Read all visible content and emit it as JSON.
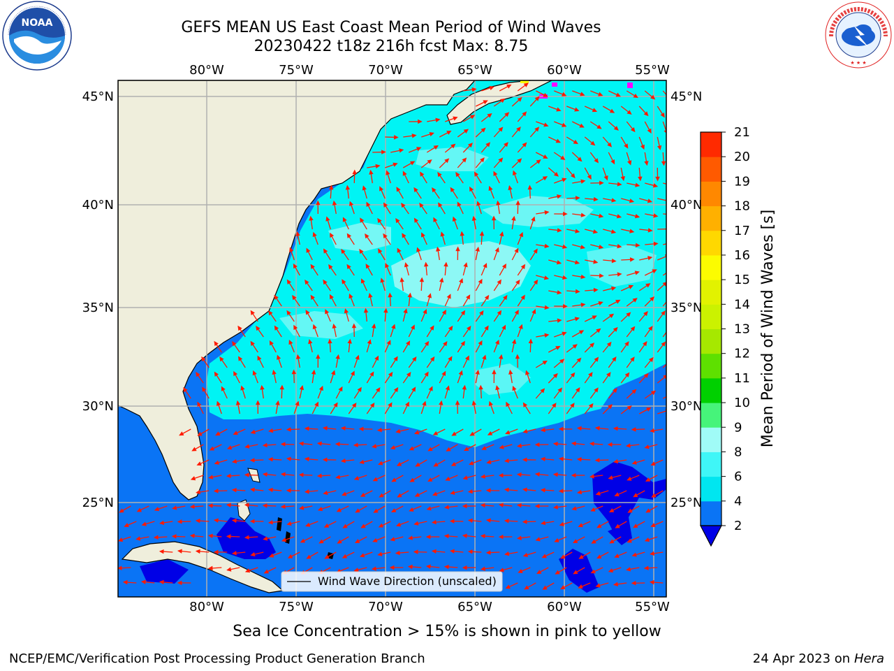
{
  "title": {
    "line1": "GEFS MEAN US East Coast Mean Period of Wind Waves",
    "line2": "20230422 t18z 216h fcst   Max: 8.75"
  },
  "axes": {
    "lon_ticks": [
      "80°W",
      "75°W",
      "70°W",
      "65°W",
      "60°W",
      "55°W"
    ],
    "lat_ticks": [
      "45°N",
      "40°N",
      "35°N",
      "30°N",
      "25°N"
    ]
  },
  "legend": {
    "label": "Wind Wave Direction (unscaled)"
  },
  "colorbar": {
    "label": "Mean Period of Wind Waves [s]",
    "ticks": [
      "2",
      "4",
      "6",
      "8",
      "9",
      "10",
      "11",
      "12",
      "13",
      "14",
      "15",
      "16",
      "17",
      "18",
      "19",
      "20",
      "21"
    ],
    "colors": [
      "#0a74f5",
      "#00e6f0",
      "#3ff6f7",
      "#a0fbf7",
      "#46f47a",
      "#00d000",
      "#5ee000",
      "#a6e800",
      "#cbf200",
      "#e2f200",
      "#fcfc00",
      "#ffd800",
      "#ffb000",
      "#ff8800",
      "#ff5a00",
      "#ff2a00"
    ],
    "extend_color": "#0000e6"
  },
  "colors": {
    "land": "#efeedc",
    "ocean_low": "#0a74f5",
    "ocean_mid": "#00f4f4",
    "ocean_high": "#a6f8f5",
    "ocean_min": "#0000e6",
    "arrow": "#ff1a00",
    "grid": "#b0b0b0"
  },
  "note": "Sea Ice Concentration > 15% is shown in pink to yellow",
  "footer": {
    "left": "NCEP/EMC/Verification Post Processing Product Generation Branch",
    "date": "24 Apr 2023 on",
    "machine": "Hera"
  },
  "logos": {
    "noaa": {
      "text": "NOAA",
      "icon": "noaa-logo-icon"
    },
    "nws": {
      "text": "NATIONAL WEATHER SERVICE",
      "icon": "nws-logo-icon"
    }
  }
}
